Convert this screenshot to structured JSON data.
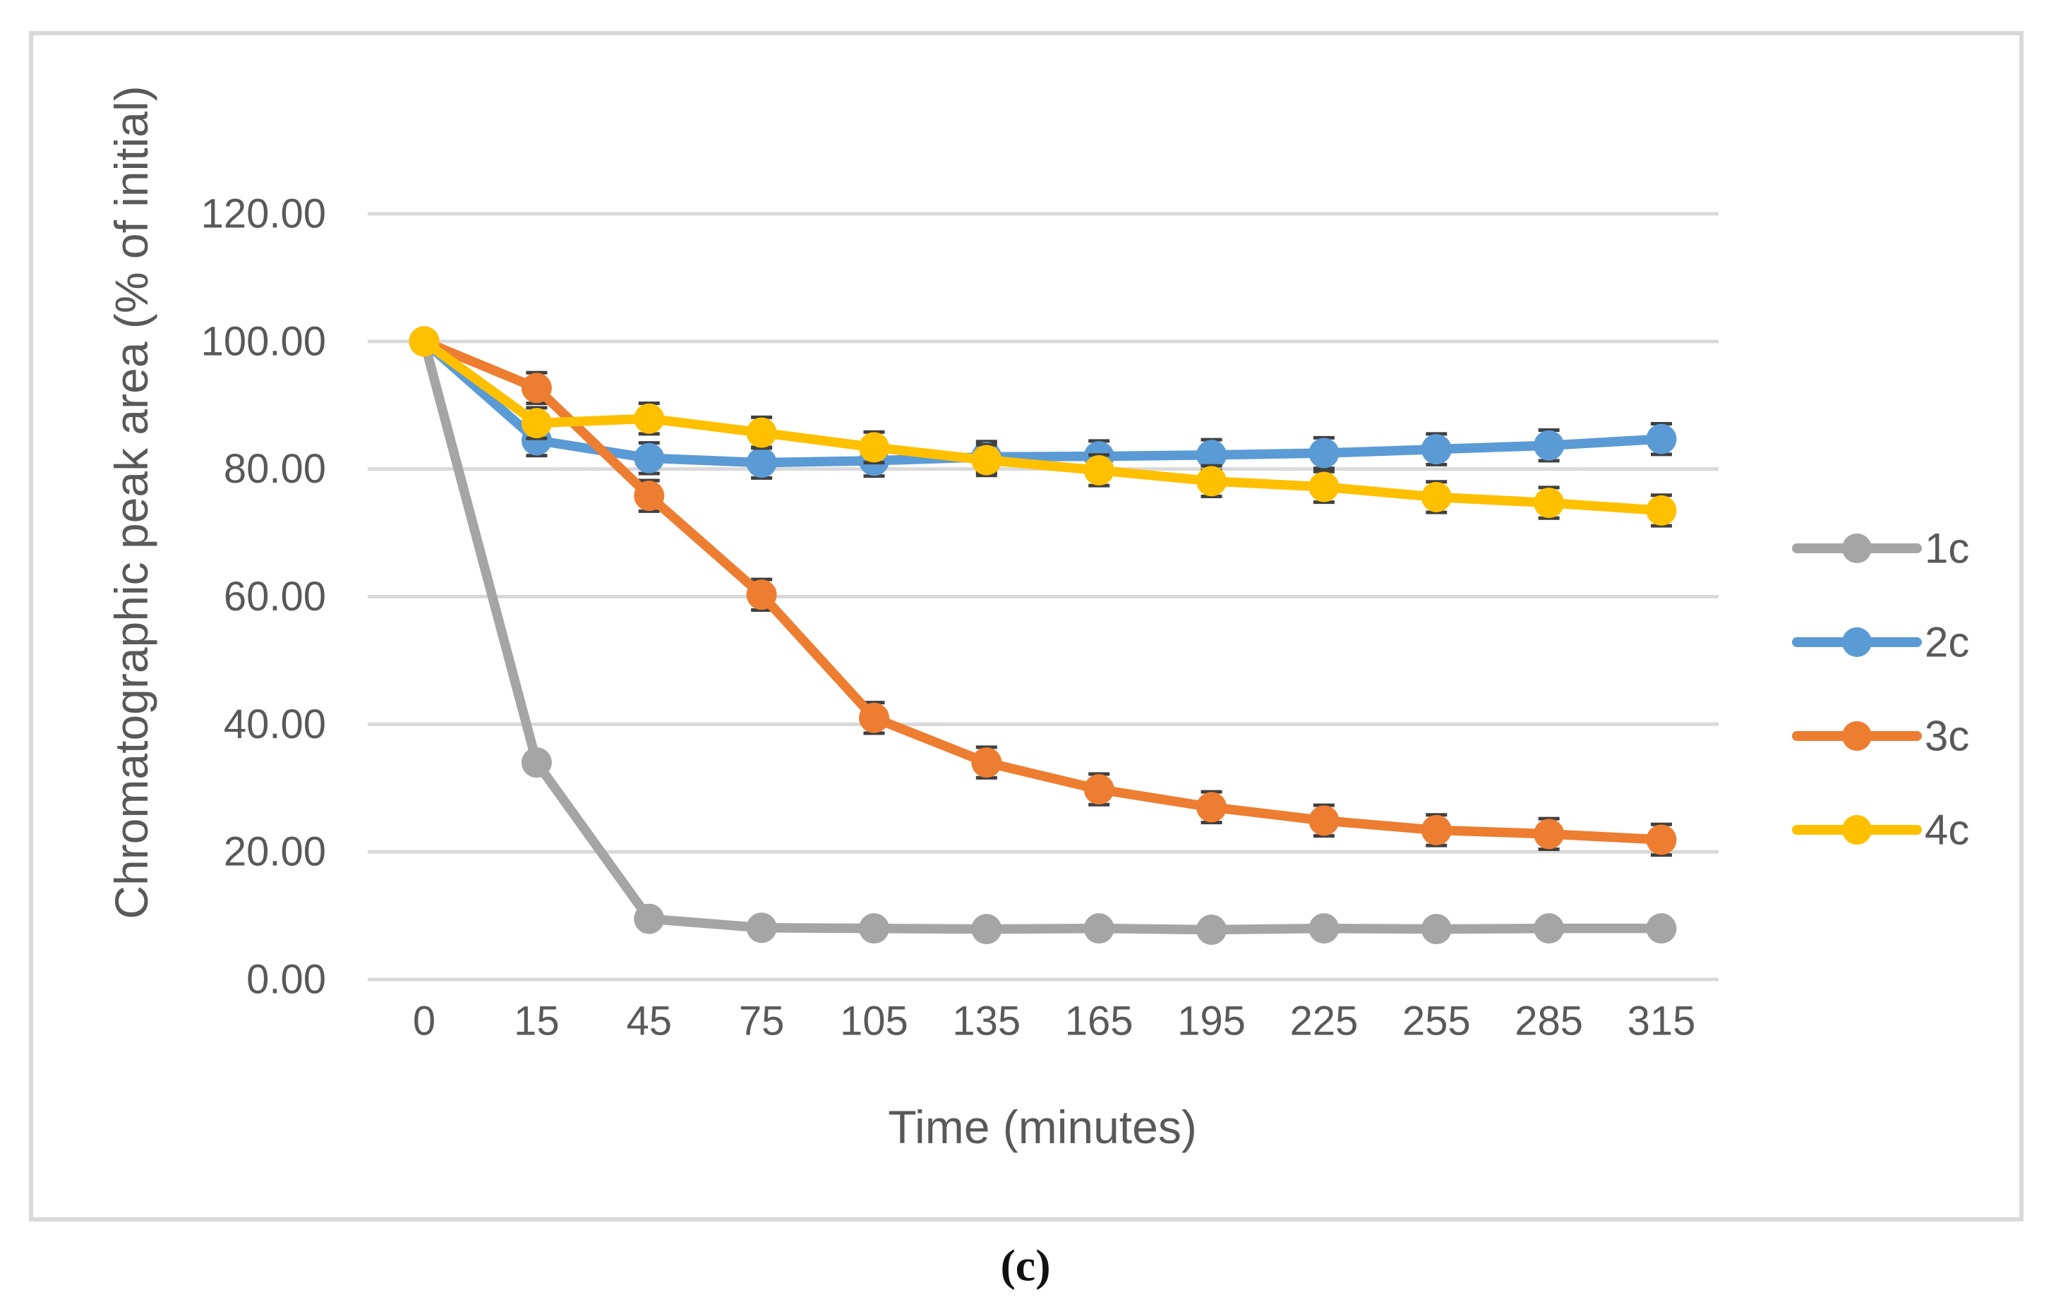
{
  "figure": {
    "caption": "(c)"
  },
  "chart_data": {
    "type": "line",
    "title": "",
    "xlabel": "Time (minutes)",
    "ylabel": "Chromatographic peak area (% of initial)",
    "x_axis_type": "category",
    "categories": [
      0,
      15,
      45,
      75,
      105,
      135,
      165,
      195,
      225,
      255,
      285,
      315
    ],
    "x_tick_labels": [
      "0",
      "15",
      "45",
      "75",
      "105",
      "135",
      "165",
      "195",
      "225",
      "255",
      "285",
      "315"
    ],
    "y_ticks": [
      {
        "value": 0,
        "label": "0.00"
      },
      {
        "value": 20,
        "label": "20.00"
      },
      {
        "value": 40,
        "label": "40.00"
      },
      {
        "value": 60,
        "label": "60.00"
      },
      {
        "value": 80,
        "label": "80.00"
      },
      {
        "value": 100,
        "label": "100.00"
      },
      {
        "value": 120,
        "label": "120.00"
      }
    ],
    "ylim": [
      0,
      120
    ],
    "grid": true,
    "legend_position": "right",
    "series": [
      {
        "name": "1c",
        "color": "#A5A5A5",
        "error_bar": 0,
        "values": [
          100,
          34,
          9.5,
          8.1,
          8.0,
          7.9,
          8.0,
          7.8,
          8.0,
          7.9,
          8.0,
          8.0
        ]
      },
      {
        "name": "2c",
        "color": "#5B9BD5",
        "error_bar": 2.4,
        "values": [
          100,
          84.5,
          81.7,
          81.0,
          81.3,
          81.9,
          82.0,
          82.2,
          82.5,
          83.1,
          83.7,
          84.7
        ]
      },
      {
        "name": "3c",
        "color": "#ED7D31",
        "error_bar": 2.4,
        "values": [
          100,
          92.7,
          75.8,
          60.3,
          41.0,
          34.0,
          29.8,
          27.0,
          24.9,
          23.4,
          22.8,
          21.9
        ]
      },
      {
        "name": "4c",
        "color": "#FFC000",
        "error_bar": 2.4,
        "values": [
          100,
          87.2,
          87.9,
          85.7,
          83.4,
          81.4,
          79.8,
          78.1,
          77.2,
          75.6,
          74.7,
          73.5
        ]
      }
    ]
  },
  "style_colors": {
    "background": "#FFFFFF",
    "gridline": "#D9D9D9",
    "figure_border": "#D9D9D9",
    "axis_text": "#595959",
    "error_bar": "#404040"
  }
}
